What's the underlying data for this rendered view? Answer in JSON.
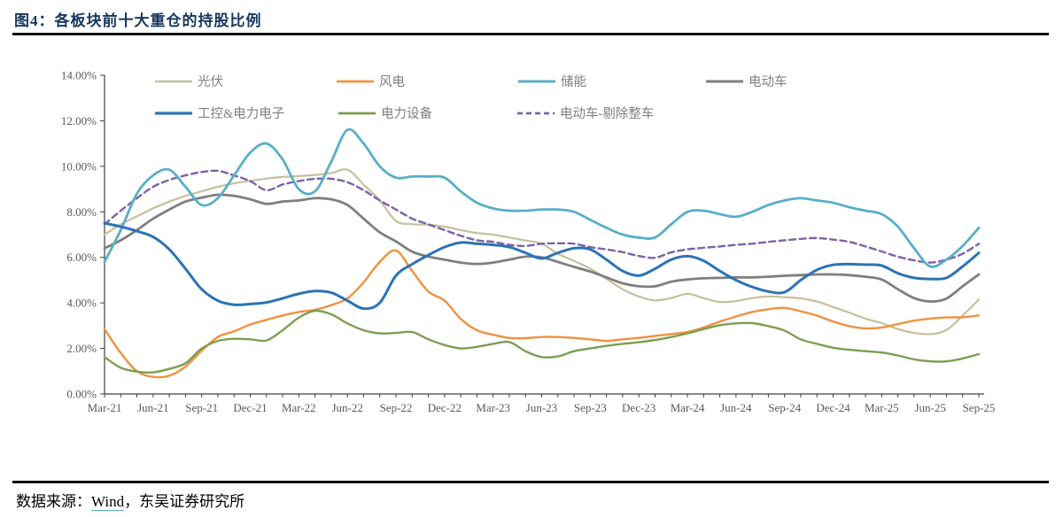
{
  "header": {
    "title": "图4：各板块前十大重仓的持股比例"
  },
  "footer": {
    "prefix": "数据来源：",
    "link_text": "Wind",
    "suffix": "，东吴证券研究所"
  },
  "chart_data": {
    "type": "line",
    "title": "各板块前十大重仓的持股比例",
    "x_unit": "month",
    "x_start": "Mar-21",
    "x_end": "Sep-25",
    "x_tick_labels": [
      "Mar-21",
      "Jun-21",
      "Sep-21",
      "Dec-21",
      "Mar-22",
      "Jun-22",
      "Sep-22",
      "Dec-22",
      "Mar-23",
      "Jun-23",
      "Sep-23",
      "Dec-23",
      "Mar-24",
      "Jun-24",
      "Sep-24",
      "Dec-24",
      "Mar-25",
      "Jun-25",
      "Sep-25"
    ],
    "months_per_tick": 3,
    "ylabel_format": "0.00%",
    "ylim": [
      0,
      14
    ],
    "ytick_step": 2,
    "grid": false,
    "legend_position": "top-inside",
    "series": [
      {
        "name": "光伏",
        "color": "#C8BF9B",
        "dash": false,
        "width": 2.2,
        "values": [
          7.0,
          7.45,
          7.8,
          8.15,
          8.45,
          8.7,
          8.9,
          9.1,
          9.25,
          9.36,
          9.46,
          9.53,
          9.57,
          9.62,
          9.7,
          9.85,
          9.2,
          8.5,
          7.6,
          7.46,
          7.43,
          7.35,
          7.2,
          7.07,
          7.0,
          6.87,
          6.74,
          6.6,
          6.16,
          5.84,
          5.51,
          5.06,
          4.6,
          4.28,
          4.11,
          4.21,
          4.4,
          4.21,
          4.04,
          4.08,
          4.21,
          4.28,
          4.25,
          4.2,
          4.06,
          3.82,
          3.57,
          3.31,
          3.11,
          2.85,
          2.68,
          2.63,
          2.81,
          3.44,
          4.15
        ]
      },
      {
        "name": "风电",
        "color": "#F0913F",
        "dash": false,
        "width": 2.4,
        "values": [
          2.85,
          1.8,
          1.0,
          0.75,
          0.8,
          1.2,
          1.9,
          2.5,
          2.75,
          3.05,
          3.25,
          3.45,
          3.6,
          3.7,
          3.9,
          4.2,
          4.9,
          5.8,
          6.3,
          5.4,
          4.5,
          4.1,
          3.3,
          2.8,
          2.6,
          2.46,
          2.45,
          2.5,
          2.5,
          2.46,
          2.4,
          2.33,
          2.4,
          2.46,
          2.55,
          2.63,
          2.72,
          2.92,
          3.18,
          3.4,
          3.6,
          3.72,
          3.78,
          3.63,
          3.44,
          3.18,
          2.98,
          2.88,
          2.92,
          3.07,
          3.22,
          3.31,
          3.36,
          3.37,
          3.45
        ]
      },
      {
        "name": "储能",
        "color": "#58AFC7",
        "dash": false,
        "width": 2.8,
        "values": [
          5.8,
          7.2,
          8.8,
          9.6,
          9.85,
          9.1,
          8.3,
          8.6,
          9.6,
          10.6,
          11.0,
          10.3,
          9.0,
          8.9,
          10.2,
          11.6,
          11.0,
          10.0,
          9.5,
          9.55,
          9.55,
          9.5,
          8.9,
          8.4,
          8.15,
          8.05,
          8.05,
          8.1,
          8.1,
          8.0,
          7.65,
          7.3,
          7.0,
          6.87,
          6.87,
          7.45,
          8.0,
          8.05,
          7.9,
          7.78,
          8.0,
          8.3,
          8.5,
          8.6,
          8.5,
          8.4,
          8.2,
          8.05,
          7.9,
          7.35,
          6.4,
          5.6,
          5.9,
          6.5,
          7.3
        ]
      },
      {
        "name": "电动车",
        "color": "#7F7F7F",
        "dash": false,
        "width": 2.8,
        "values": [
          6.4,
          6.75,
          7.2,
          7.7,
          8.1,
          8.45,
          8.62,
          8.75,
          8.7,
          8.55,
          8.35,
          8.45,
          8.5,
          8.6,
          8.55,
          8.3,
          7.7,
          7.1,
          6.7,
          6.25,
          6.03,
          5.9,
          5.77,
          5.71,
          5.77,
          5.9,
          6.03,
          6.0,
          5.8,
          5.58,
          5.38,
          5.12,
          4.86,
          4.73,
          4.73,
          4.93,
          5.03,
          5.08,
          5.1,
          5.12,
          5.12,
          5.15,
          5.19,
          5.22,
          5.25,
          5.25,
          5.22,
          5.15,
          5.03,
          4.6,
          4.21,
          4.06,
          4.19,
          4.73,
          5.25
        ]
      },
      {
        "name": "工控&电力电子",
        "color": "#2C73B4",
        "dash": false,
        "width": 3.0,
        "values": [
          7.5,
          7.35,
          7.15,
          6.9,
          6.35,
          5.5,
          4.6,
          4.1,
          3.92,
          3.95,
          4.02,
          4.2,
          4.4,
          4.52,
          4.45,
          4.1,
          3.75,
          4.0,
          5.2,
          5.7,
          6.1,
          6.45,
          6.65,
          6.6,
          6.55,
          6.45,
          6.2,
          5.95,
          6.2,
          6.4,
          6.35,
          5.9,
          5.4,
          5.2,
          5.5,
          5.9,
          6.05,
          5.85,
          5.4,
          5.0,
          4.7,
          4.5,
          4.47,
          5.0,
          5.45,
          5.67,
          5.7,
          5.68,
          5.64,
          5.3,
          5.1,
          5.05,
          5.1,
          5.6,
          6.2
        ]
      },
      {
        "name": "电力设备",
        "color": "#7C9E52",
        "dash": false,
        "width": 2.4,
        "values": [
          1.62,
          1.15,
          0.98,
          0.95,
          1.1,
          1.35,
          2.0,
          2.33,
          2.42,
          2.4,
          2.35,
          2.8,
          3.35,
          3.65,
          3.5,
          3.1,
          2.8,
          2.66,
          2.68,
          2.72,
          2.4,
          2.15,
          2.0,
          2.07,
          2.2,
          2.28,
          1.88,
          1.62,
          1.65,
          1.88,
          2.0,
          2.11,
          2.2,
          2.27,
          2.37,
          2.5,
          2.66,
          2.85,
          3.02,
          3.1,
          3.11,
          2.98,
          2.78,
          2.4,
          2.2,
          2.03,
          1.94,
          1.88,
          1.82,
          1.69,
          1.52,
          1.43,
          1.43,
          1.56,
          1.75
        ]
      },
      {
        "name": "电动车-剔除整车",
        "color": "#7A63A8",
        "dash": true,
        "width": 2.4,
        "values": [
          7.45,
          8.05,
          8.6,
          9.1,
          9.4,
          9.6,
          9.75,
          9.8,
          9.6,
          9.35,
          8.95,
          9.2,
          9.35,
          9.45,
          9.45,
          9.3,
          8.95,
          8.5,
          8.1,
          7.7,
          7.45,
          7.2,
          6.95,
          6.75,
          6.68,
          6.55,
          6.5,
          6.6,
          6.62,
          6.6,
          6.45,
          6.35,
          6.23,
          6.06,
          5.98,
          6.22,
          6.35,
          6.42,
          6.48,
          6.55,
          6.6,
          6.68,
          6.75,
          6.81,
          6.85,
          6.78,
          6.68,
          6.48,
          6.26,
          6.03,
          5.87,
          5.77,
          5.9,
          6.16,
          6.6
        ]
      }
    ]
  }
}
